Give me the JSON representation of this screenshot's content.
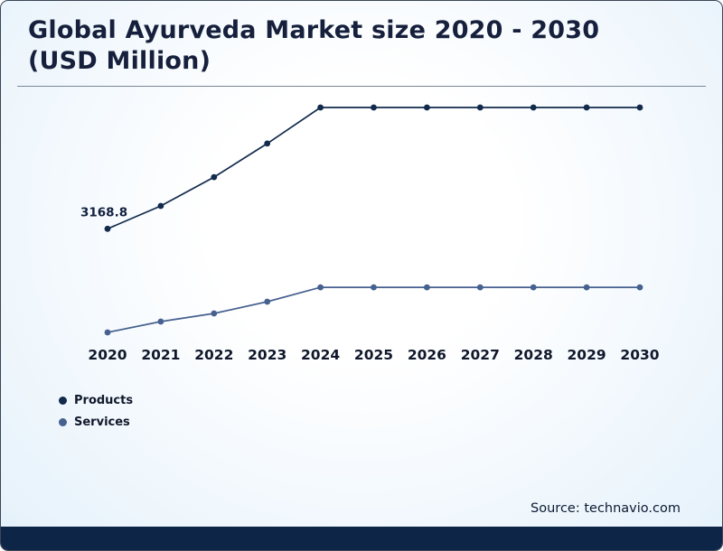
{
  "title": "Global Ayurveda Market size 2020 - 2030 (USD Million)",
  "source": "Source: technavio.com",
  "colors": {
    "products": "#122a4c",
    "services": "#46618f",
    "title": "#16203c",
    "bottom_bar": "#0d2546",
    "background_tint": "#e6f2fb"
  },
  "legend": [
    {
      "label": "Products",
      "color": "#122a4c"
    },
    {
      "label": "Services",
      "color": "#46618f"
    }
  ],
  "chart_data": {
    "type": "line",
    "title": "Global Ayurveda Market size 2020 - 2030 (USD Million)",
    "categories": [
      2020,
      2021,
      2022,
      2023,
      2024,
      2025,
      2026,
      2027,
      2028,
      2029,
      2030
    ],
    "series": [
      {
        "name": "Products",
        "color": "#122a4c",
        "values": [
          3168.8,
          3850,
          4710,
          5710,
          6785,
          6785,
          6785,
          6785,
          6785,
          6785,
          6785
        ]
      },
      {
        "name": "Services",
        "color": "#46618f",
        "values": [
          80,
          405,
          645,
          995,
          1425,
          1425,
          1425,
          1425,
          1425,
          1425,
          1425
        ]
      }
    ],
    "xlabel": "",
    "ylabel": "USD Million",
    "ylim": [
      0,
      7000
    ],
    "grid": false,
    "legend_position": "bottom-left",
    "data_labels": [
      {
        "series": "Products",
        "x": 2020,
        "text": "3168.8"
      }
    ]
  }
}
